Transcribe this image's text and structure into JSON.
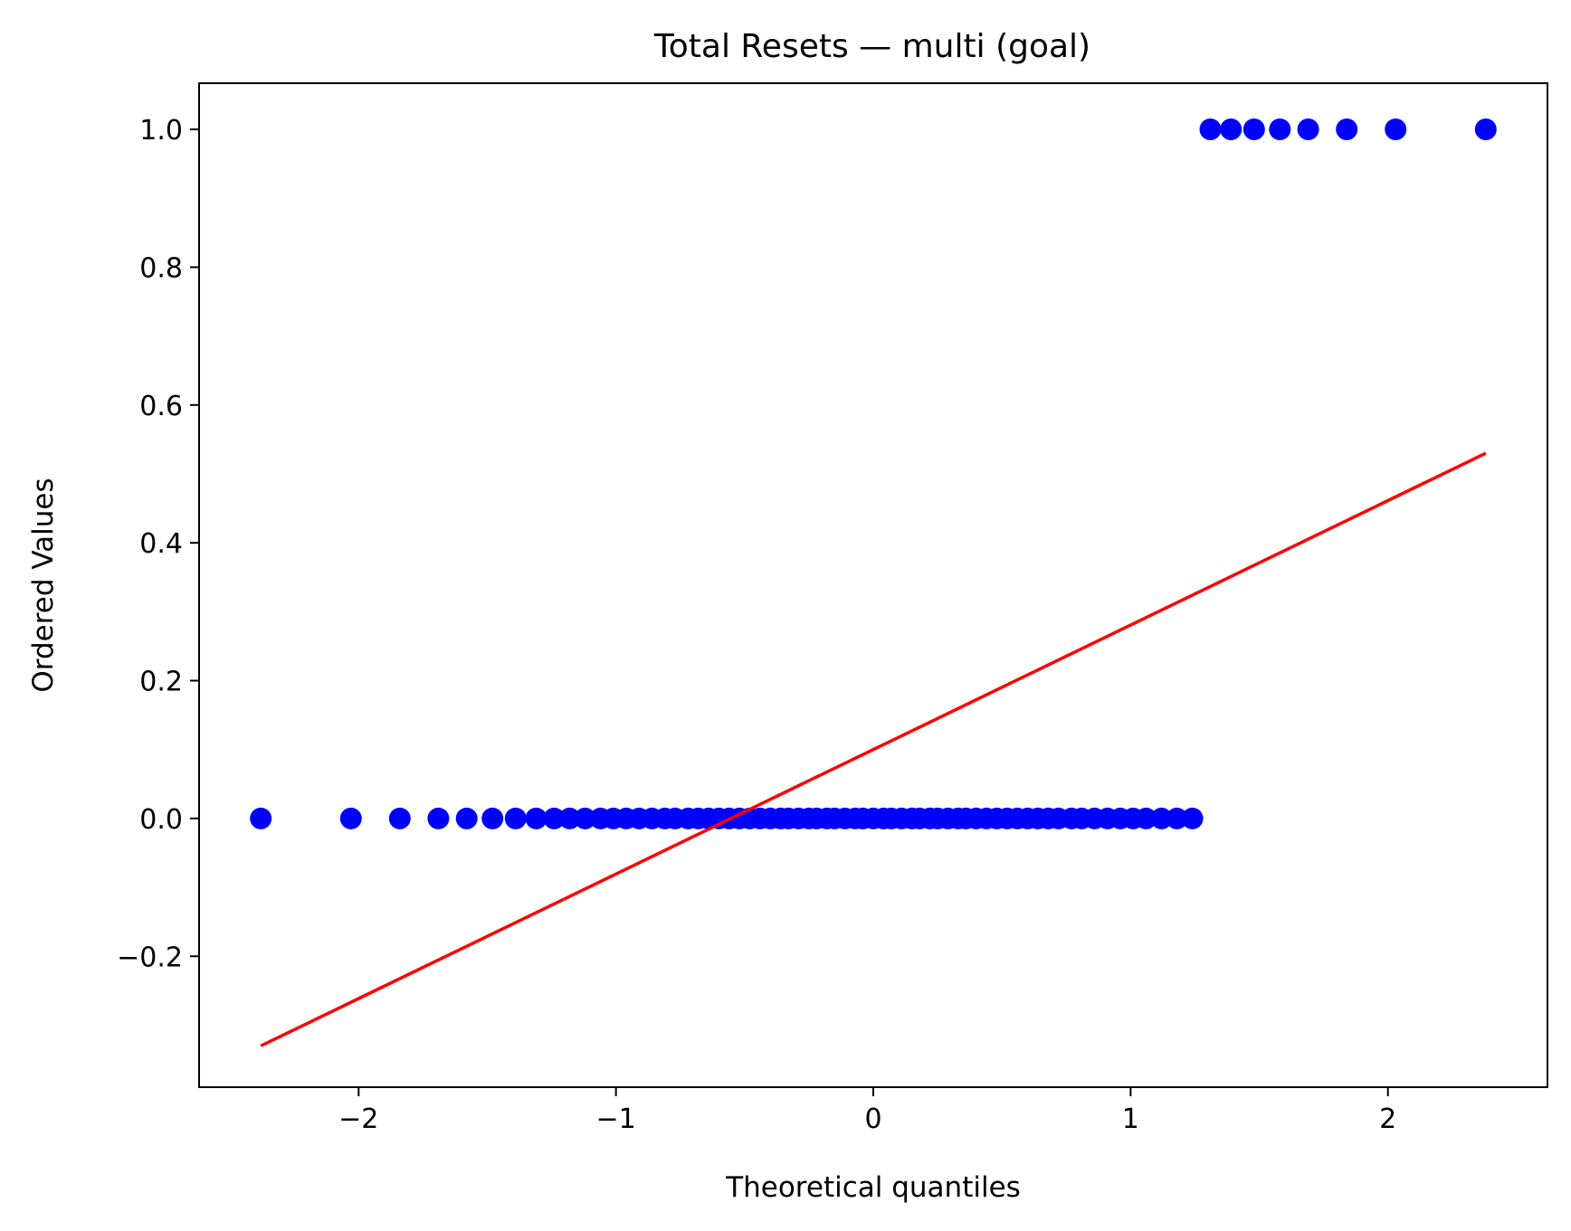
{
  "chart_data": {
    "type": "scatter",
    "title": "Total Resets — multi (goal)",
    "xlabel": "Theoretical quantiles",
    "ylabel": "Ordered Values",
    "xlim": [
      -2.62,
      2.62
    ],
    "ylim": [
      -0.39,
      1.067
    ],
    "x_ticks": [
      -2,
      -1,
      0,
      1,
      2
    ],
    "x_tick_labels": [
      "−2",
      "−1",
      "0",
      "1",
      "2"
    ],
    "y_ticks": [
      -0.2,
      0.0,
      0.2,
      0.4,
      0.6,
      0.8,
      1.0
    ],
    "y_tick_labels": [
      "−0.2",
      "0.0",
      "0.2",
      "0.4",
      "0.6",
      "0.8",
      "1.0"
    ],
    "grid": false,
    "marker_color": "#0000ff",
    "line_color": "#ff0000",
    "series": [
      {
        "kind": "points",
        "x": [
          -2.38,
          -2.03,
          -1.84,
          -1.69,
          -1.58,
          -1.48,
          -1.39,
          -1.31,
          -1.24,
          -1.18,
          -1.12,
          -1.06,
          -1.01,
          -0.96,
          -0.91,
          -0.86,
          -0.81,
          -0.77,
          -0.72,
          -0.68,
          -0.64,
          -0.6,
          -0.56,
          -0.52,
          -0.48,
          -0.44,
          -0.4,
          -0.36,
          -0.33,
          -0.29,
          -0.25,
          -0.22,
          -0.18,
          -0.15,
          -0.11,
          -0.07,
          -0.04,
          0.0,
          0.04,
          0.07,
          0.11,
          0.15,
          0.18,
          0.22,
          0.25,
          0.29,
          0.33,
          0.36,
          0.4,
          0.44,
          0.48,
          0.52,
          0.56,
          0.6,
          0.64,
          0.68,
          0.72,
          0.77,
          0.81,
          0.86,
          0.91,
          0.96,
          1.01,
          1.06,
          1.12,
          1.18,
          1.24,
          1.31,
          1.39,
          1.48,
          1.58,
          1.69,
          1.84,
          2.03,
          2.38
        ],
        "y": [
          0,
          0,
          0,
          0,
          0,
          0,
          0,
          0,
          0,
          0,
          0,
          0,
          0,
          0,
          0,
          0,
          0,
          0,
          0,
          0,
          0,
          0,
          0,
          0,
          0,
          0,
          0,
          0,
          0,
          0,
          0,
          0,
          0,
          0,
          0,
          0,
          0,
          0,
          0,
          0,
          0,
          0,
          0,
          0,
          0,
          0,
          0,
          0,
          0,
          0,
          0,
          0,
          0,
          0,
          0,
          0,
          0,
          0,
          0,
          0,
          0,
          0,
          0,
          0,
          0,
          0,
          0,
          1,
          1,
          1,
          1,
          1,
          1,
          1,
          1
        ]
      },
      {
        "kind": "fit-line",
        "x": [
          -2.38,
          2.38
        ],
        "y": [
          -0.33,
          0.53
        ]
      }
    ]
  }
}
